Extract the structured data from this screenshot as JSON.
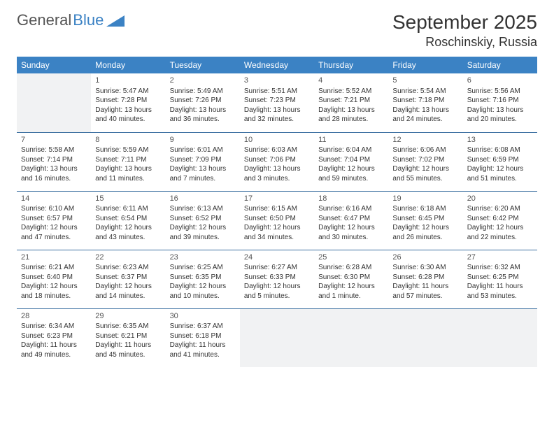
{
  "logo": {
    "text1": "General",
    "text2": "Blue",
    "triangle_color": "#3b82c4"
  },
  "header": {
    "month_title": "September 2025",
    "location": "Roschinskiy, Russia"
  },
  "colors": {
    "header_bar": "#3b82c4",
    "row_border": "#3b6fa0",
    "empty_bg": "#f1f2f3",
    "text": "#333333",
    "daynum": "#555555"
  },
  "font": {
    "family": "Arial",
    "title_size": 28,
    "location_size": 18,
    "th_size": 12,
    "cell_size": 10,
    "daynum_size": 11
  },
  "day_headers": [
    "Sunday",
    "Monday",
    "Tuesday",
    "Wednesday",
    "Thursday",
    "Friday",
    "Saturday"
  ],
  "weeks": [
    [
      {
        "empty": true
      },
      {
        "day": "1",
        "sunrise": "Sunrise: 5:47 AM",
        "sunset": "Sunset: 7:28 PM",
        "daylight1": "Daylight: 13 hours",
        "daylight2": "and 40 minutes."
      },
      {
        "day": "2",
        "sunrise": "Sunrise: 5:49 AM",
        "sunset": "Sunset: 7:26 PM",
        "daylight1": "Daylight: 13 hours",
        "daylight2": "and 36 minutes."
      },
      {
        "day": "3",
        "sunrise": "Sunrise: 5:51 AM",
        "sunset": "Sunset: 7:23 PM",
        "daylight1": "Daylight: 13 hours",
        "daylight2": "and 32 minutes."
      },
      {
        "day": "4",
        "sunrise": "Sunrise: 5:52 AM",
        "sunset": "Sunset: 7:21 PM",
        "daylight1": "Daylight: 13 hours",
        "daylight2": "and 28 minutes."
      },
      {
        "day": "5",
        "sunrise": "Sunrise: 5:54 AM",
        "sunset": "Sunset: 7:18 PM",
        "daylight1": "Daylight: 13 hours",
        "daylight2": "and 24 minutes."
      },
      {
        "day": "6",
        "sunrise": "Sunrise: 5:56 AM",
        "sunset": "Sunset: 7:16 PM",
        "daylight1": "Daylight: 13 hours",
        "daylight2": "and 20 minutes."
      }
    ],
    [
      {
        "day": "7",
        "sunrise": "Sunrise: 5:58 AM",
        "sunset": "Sunset: 7:14 PM",
        "daylight1": "Daylight: 13 hours",
        "daylight2": "and 16 minutes."
      },
      {
        "day": "8",
        "sunrise": "Sunrise: 5:59 AM",
        "sunset": "Sunset: 7:11 PM",
        "daylight1": "Daylight: 13 hours",
        "daylight2": "and 11 minutes."
      },
      {
        "day": "9",
        "sunrise": "Sunrise: 6:01 AM",
        "sunset": "Sunset: 7:09 PM",
        "daylight1": "Daylight: 13 hours",
        "daylight2": "and 7 minutes."
      },
      {
        "day": "10",
        "sunrise": "Sunrise: 6:03 AM",
        "sunset": "Sunset: 7:06 PM",
        "daylight1": "Daylight: 13 hours",
        "daylight2": "and 3 minutes."
      },
      {
        "day": "11",
        "sunrise": "Sunrise: 6:04 AM",
        "sunset": "Sunset: 7:04 PM",
        "daylight1": "Daylight: 12 hours",
        "daylight2": "and 59 minutes."
      },
      {
        "day": "12",
        "sunrise": "Sunrise: 6:06 AM",
        "sunset": "Sunset: 7:02 PM",
        "daylight1": "Daylight: 12 hours",
        "daylight2": "and 55 minutes."
      },
      {
        "day": "13",
        "sunrise": "Sunrise: 6:08 AM",
        "sunset": "Sunset: 6:59 PM",
        "daylight1": "Daylight: 12 hours",
        "daylight2": "and 51 minutes."
      }
    ],
    [
      {
        "day": "14",
        "sunrise": "Sunrise: 6:10 AM",
        "sunset": "Sunset: 6:57 PM",
        "daylight1": "Daylight: 12 hours",
        "daylight2": "and 47 minutes."
      },
      {
        "day": "15",
        "sunrise": "Sunrise: 6:11 AM",
        "sunset": "Sunset: 6:54 PM",
        "daylight1": "Daylight: 12 hours",
        "daylight2": "and 43 minutes."
      },
      {
        "day": "16",
        "sunrise": "Sunrise: 6:13 AM",
        "sunset": "Sunset: 6:52 PM",
        "daylight1": "Daylight: 12 hours",
        "daylight2": "and 39 minutes."
      },
      {
        "day": "17",
        "sunrise": "Sunrise: 6:15 AM",
        "sunset": "Sunset: 6:50 PM",
        "daylight1": "Daylight: 12 hours",
        "daylight2": "and 34 minutes."
      },
      {
        "day": "18",
        "sunrise": "Sunrise: 6:16 AM",
        "sunset": "Sunset: 6:47 PM",
        "daylight1": "Daylight: 12 hours",
        "daylight2": "and 30 minutes."
      },
      {
        "day": "19",
        "sunrise": "Sunrise: 6:18 AM",
        "sunset": "Sunset: 6:45 PM",
        "daylight1": "Daylight: 12 hours",
        "daylight2": "and 26 minutes."
      },
      {
        "day": "20",
        "sunrise": "Sunrise: 6:20 AM",
        "sunset": "Sunset: 6:42 PM",
        "daylight1": "Daylight: 12 hours",
        "daylight2": "and 22 minutes."
      }
    ],
    [
      {
        "day": "21",
        "sunrise": "Sunrise: 6:21 AM",
        "sunset": "Sunset: 6:40 PM",
        "daylight1": "Daylight: 12 hours",
        "daylight2": "and 18 minutes."
      },
      {
        "day": "22",
        "sunrise": "Sunrise: 6:23 AM",
        "sunset": "Sunset: 6:37 PM",
        "daylight1": "Daylight: 12 hours",
        "daylight2": "and 14 minutes."
      },
      {
        "day": "23",
        "sunrise": "Sunrise: 6:25 AM",
        "sunset": "Sunset: 6:35 PM",
        "daylight1": "Daylight: 12 hours",
        "daylight2": "and 10 minutes."
      },
      {
        "day": "24",
        "sunrise": "Sunrise: 6:27 AM",
        "sunset": "Sunset: 6:33 PM",
        "daylight1": "Daylight: 12 hours",
        "daylight2": "and 5 minutes."
      },
      {
        "day": "25",
        "sunrise": "Sunrise: 6:28 AM",
        "sunset": "Sunset: 6:30 PM",
        "daylight1": "Daylight: 12 hours",
        "daylight2": "and 1 minute."
      },
      {
        "day": "26",
        "sunrise": "Sunrise: 6:30 AM",
        "sunset": "Sunset: 6:28 PM",
        "daylight1": "Daylight: 11 hours",
        "daylight2": "and 57 minutes."
      },
      {
        "day": "27",
        "sunrise": "Sunrise: 6:32 AM",
        "sunset": "Sunset: 6:25 PM",
        "daylight1": "Daylight: 11 hours",
        "daylight2": "and 53 minutes."
      }
    ],
    [
      {
        "day": "28",
        "sunrise": "Sunrise: 6:34 AM",
        "sunset": "Sunset: 6:23 PM",
        "daylight1": "Daylight: 11 hours",
        "daylight2": "and 49 minutes."
      },
      {
        "day": "29",
        "sunrise": "Sunrise: 6:35 AM",
        "sunset": "Sunset: 6:21 PM",
        "daylight1": "Daylight: 11 hours",
        "daylight2": "and 45 minutes."
      },
      {
        "day": "30",
        "sunrise": "Sunrise: 6:37 AM",
        "sunset": "Sunset: 6:18 PM",
        "daylight1": "Daylight: 11 hours",
        "daylight2": "and 41 minutes."
      },
      {
        "empty": true
      },
      {
        "empty": true
      },
      {
        "empty": true
      },
      {
        "empty": true
      }
    ]
  ]
}
